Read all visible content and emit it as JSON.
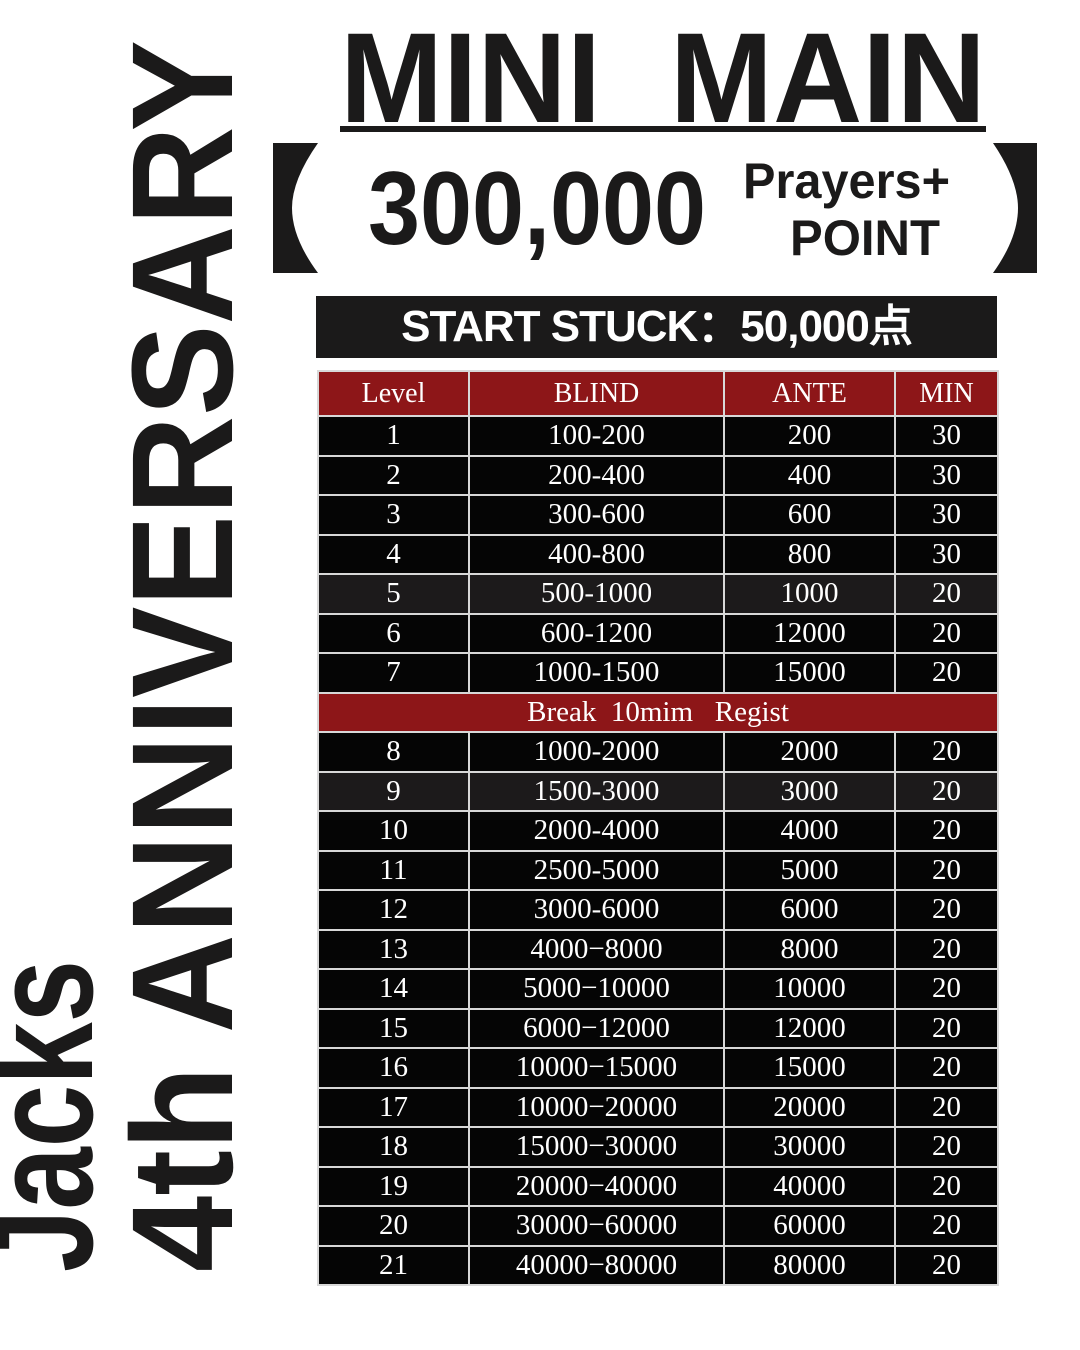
{
  "side_title": {
    "line1": "Jacks",
    "line2": "4th ANNIVERSARY"
  },
  "title": "MINI  MAIN",
  "prize": {
    "amount": "300,000",
    "line1": "Prayers+",
    "line2": "POINT"
  },
  "start_stack": "START STUCK：50,000点",
  "colors": {
    "header_red": "#8d1618",
    "row_black": "#050505",
    "row_gray": "#1c1a1b"
  },
  "table": {
    "headers": [
      "Level",
      "BLIND",
      "ANTE",
      "MIN"
    ],
    "break_label": "Break  10mim   Regist",
    "rows_before_break": [
      [
        "1",
        "100-200",
        "200",
        "30"
      ],
      [
        "2",
        "200-400",
        "400",
        "30"
      ],
      [
        "3",
        "300-600",
        "600",
        "30"
      ],
      [
        "4",
        "400-800",
        "800",
        "30"
      ],
      [
        "5",
        "500-1000",
        "1000",
        "20"
      ],
      [
        "6",
        "600-1200",
        "12000",
        "20"
      ],
      [
        "7",
        "1000-1500",
        "15000",
        "20"
      ]
    ],
    "rows_after_break": [
      [
        "8",
        "1000-2000",
        "2000",
        "20"
      ],
      [
        "9",
        "1500-3000",
        "3000",
        "20"
      ],
      [
        "10",
        "2000-4000",
        "4000",
        "20"
      ],
      [
        "11",
        "2500-5000",
        "5000",
        "20"
      ],
      [
        "12",
        "3000-6000",
        "6000",
        "20"
      ],
      [
        "13",
        "4000−8000",
        "8000",
        "20"
      ],
      [
        "14",
        "5000−10000",
        "10000",
        "20"
      ],
      [
        "15",
        "6000−12000",
        "12000",
        "20"
      ],
      [
        "16",
        "10000−15000",
        "15000",
        "20"
      ],
      [
        "17",
        "10000−20000",
        "20000",
        "20"
      ],
      [
        "18",
        "15000−30000",
        "30000",
        "20"
      ],
      [
        "19",
        "20000−40000",
        "40000",
        "20"
      ],
      [
        "20",
        "30000−60000",
        "60000",
        "20"
      ],
      [
        "21",
        "40000−80000",
        "80000",
        "20"
      ]
    ]
  }
}
